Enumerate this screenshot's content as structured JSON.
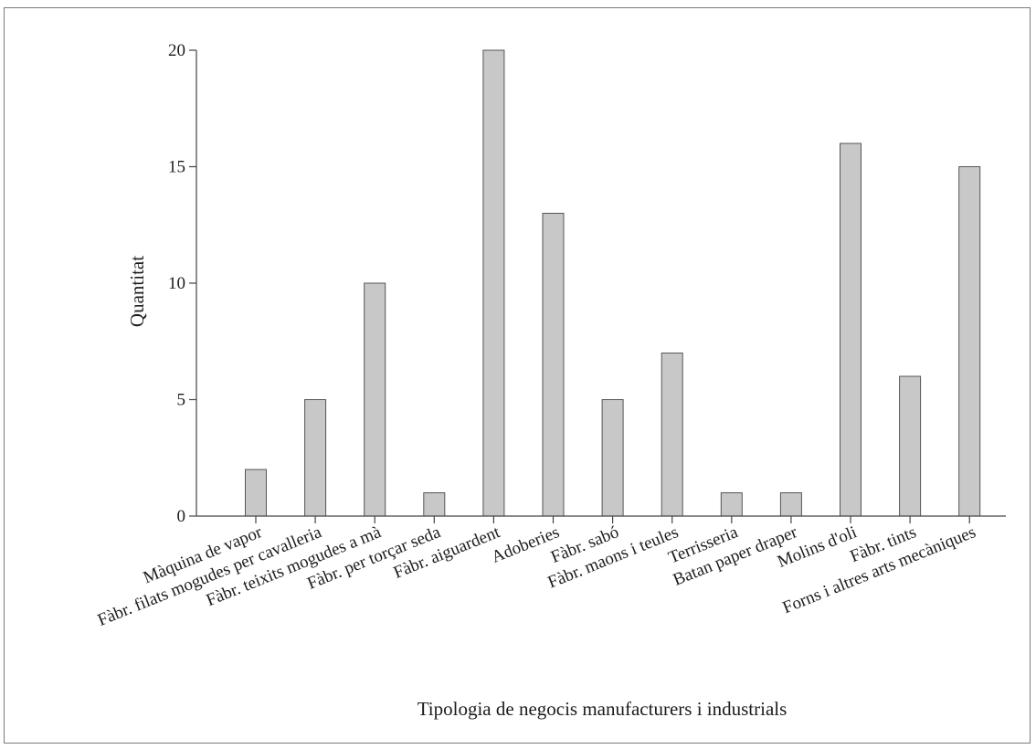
{
  "chart_data": {
    "type": "bar",
    "title": "",
    "xlabel": "Tipologia de negocis manufacturers i industrials",
    "ylabel": "Quantitat",
    "ylim": [
      0,
      20
    ],
    "yticks": [
      0,
      5,
      10,
      15,
      20
    ],
    "categories": [
      "Màquina de vapor",
      "Fàbr. filats mogudes per cavalleria",
      "Fàbr. teixits mogudes a mà",
      "Fàbr. per torçar seda",
      "Fàbr. aiguardent",
      "Adoberies",
      "Fàbr. sabó",
      "Fàbr. maons i teules",
      "Terrisseria",
      "Batan paper draper",
      "Molins d'oli",
      "Fàbr. tints",
      "Forns i altres arts mecàniques"
    ],
    "values": [
      2,
      5,
      10,
      1,
      20,
      13,
      5,
      7,
      1,
      1,
      16,
      6,
      15
    ],
    "bar_color": "#c8c8c8",
    "bar_edge_color": "#555555",
    "axis_color": "#444444",
    "grid": false,
    "legend": "none"
  }
}
